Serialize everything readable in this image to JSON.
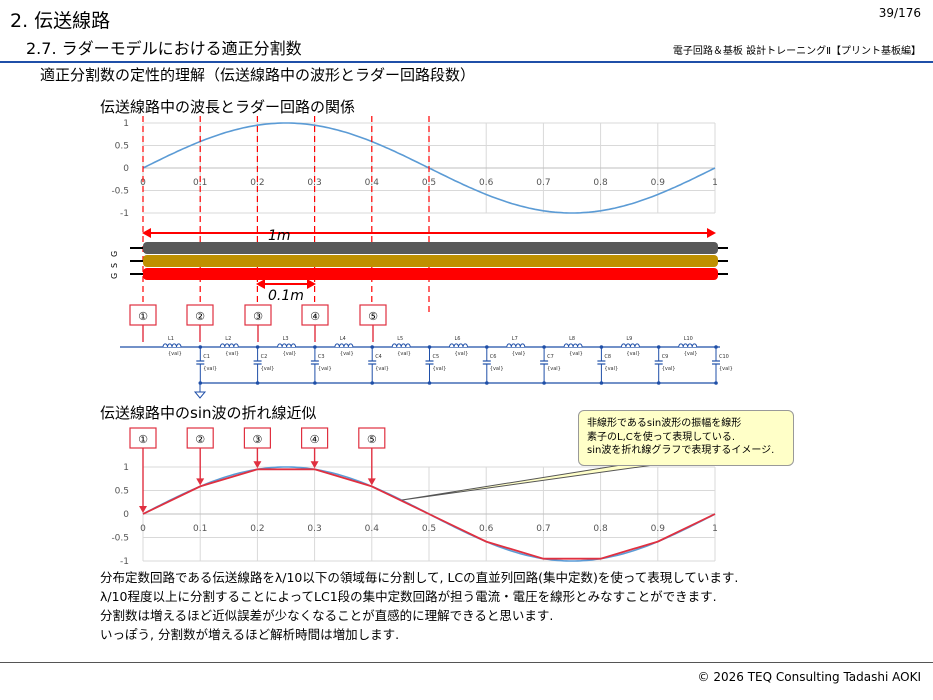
{
  "header": {
    "title": "2. 伝送線路",
    "subtitle": "2.7. ラダーモデルにおける適正分割数",
    "page_number": "39/176",
    "course": "電子回路＆基板 設計トレーニングⅡ【プリント基板編】"
  },
  "section_heading": "適正分割数の定性的理解（伝送線路中の波形とラダー回路段数）",
  "wavelength_heading": "伝送線路中の波長とラダー回路の関係",
  "approx_heading": "伝送線路中のsin波の折れ線近似",
  "length_label_total": "1m",
  "length_label_section": "0.1m",
  "line_layer_labels": [
    "G",
    "S",
    "G"
  ],
  "markers": [
    "①",
    "②",
    "③",
    "④",
    "⑤"
  ],
  "ladder": {
    "inductors": [
      "L1",
      "L2",
      "L3",
      "L4",
      "L5",
      "L6",
      "L7",
      "L8",
      "L9",
      "L10"
    ],
    "capacitors": [
      "C1",
      "C2",
      "C3",
      "C4",
      "C5",
      "C6",
      "C7",
      "C8",
      "C9",
      "C10"
    ],
    "value_label": "{val}"
  },
  "callout": {
    "lines": [
      "非線形であるsin波形の振幅を線形",
      "素子のL,Cを使って表現している.",
      "sin波を折れ線グラフで表現するイメージ."
    ]
  },
  "body_text": [
    "分布定数回路である伝送線路をλ/10以下の領域毎に分割して, LCの直並列回路(集中定数)を使って表現しています.",
    "λ/10程度以上に分割することによってLC1段の集中定数回路が担う電流・電圧を線形とみなすことができます.",
    "分割数は増えるほど近似誤差が少なくなることが直感的に理解できると思います.",
    "いっぽう,  分割数が増えるほど解析時間は増加します."
  ],
  "footer": "© 2026 TEQ Consulting Tadashi AOKI",
  "chart_data": [
    {
      "type": "line",
      "x_ticks": [
        "0",
        "0.1",
        "0.2",
        "0.3",
        "0.4",
        "0.5",
        "0.6",
        "0.7",
        "0.8",
        "0.9",
        "1"
      ],
      "y_ticks": [
        "1",
        "0.5",
        "0",
        "-0.5",
        "-1"
      ],
      "xlim": [
        0,
        1
      ],
      "ylim": [
        -1,
        1
      ],
      "grid": true,
      "series": [
        {
          "function": "sin(2πx)",
          "color": "#5b9bd5"
        }
      ],
      "dashed_markers_x": [
        0,
        0.1,
        0.2,
        0.3,
        0.4,
        0.5
      ],
      "dashed_color": "#ff0000"
    },
    {
      "type": "line",
      "x_ticks": [
        "0",
        "0.1",
        "0.2",
        "0.3",
        "0.4",
        "0.5",
        "0.6",
        "0.7",
        "0.8",
        "0.9",
        "1"
      ],
      "y_ticks": [
        "1",
        "0.5",
        "0",
        "-0.5",
        "-1"
      ],
      "xlim": [
        0,
        1
      ],
      "ylim": [
        -1,
        1
      ],
      "grid": true,
      "series": [
        {
          "function": "sin(2πx)",
          "color": "#5b9bd5"
        },
        {
          "x": [
            0,
            0.1,
            0.2,
            0.3,
            0.4,
            0.5,
            0.6,
            0.7,
            0.8,
            0.9,
            1
          ],
          "y": [
            0,
            0.588,
            0.951,
            0.951,
            0.588,
            0,
            -0.588,
            -0.951,
            -0.951,
            -0.588,
            0
          ],
          "color": "#e03040"
        }
      ],
      "marker_points_x": [
        0,
        0.1,
        0.2,
        0.3,
        0.4
      ]
    }
  ]
}
